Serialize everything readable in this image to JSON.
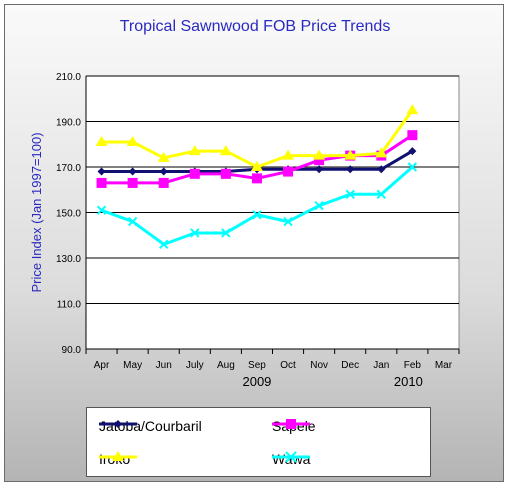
{
  "chart_data": {
    "type": "line",
    "title": "Tropical Sawnwood FOB Price Trends",
    "ylabel": "Price Index (Jan 1997=100)",
    "ylim": [
      90,
      210
    ],
    "yticks": [
      "90.0",
      "110.0",
      "130.0",
      "150.0",
      "170.0",
      "190.0",
      "210.0"
    ],
    "categories": [
      "Apr",
      "May",
      "Jun",
      "July",
      "Aug",
      "Sep",
      "Oct",
      "Nov",
      "Dec",
      "Jan",
      "Feb",
      "Mar"
    ],
    "year_labels": [
      "2009",
      "2010"
    ],
    "grid": true,
    "legend_position": "bottom",
    "series": [
      {
        "name": "Jatoba/Courbaril",
        "color": "#101070",
        "marker": "diamond",
        "values": [
          168,
          168,
          168,
          168,
          168,
          169,
          169,
          169,
          169,
          169,
          177,
          null
        ]
      },
      {
        "name": "Sapele",
        "color": "#ff00ff",
        "marker": "square",
        "values": [
          163,
          163,
          163,
          167,
          167,
          165,
          168,
          173,
          175,
          175,
          184,
          null
        ]
      },
      {
        "name": "Iroko",
        "color": "#ffff00",
        "marker": "triangle",
        "values": [
          181,
          181,
          174,
          177,
          177,
          170,
          175,
          175,
          175,
          176,
          195,
          null
        ]
      },
      {
        "name": "Wawa",
        "color": "#00ffff",
        "marker": "cross",
        "values": [
          151,
          146,
          136,
          141,
          141,
          149,
          146,
          153,
          158,
          158,
          170,
          null
        ]
      }
    ]
  }
}
